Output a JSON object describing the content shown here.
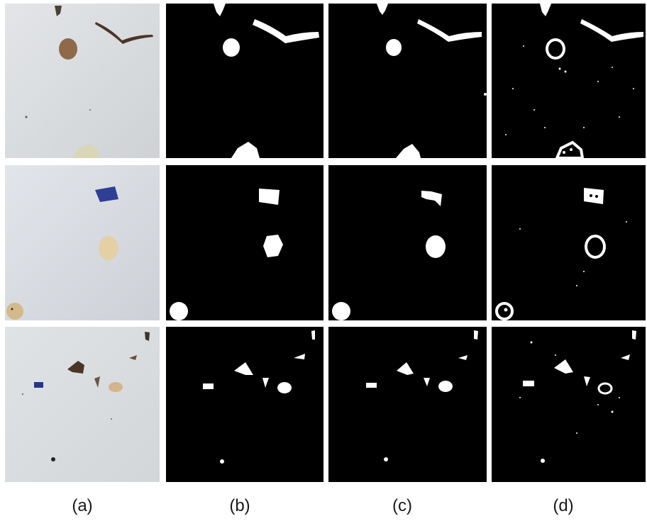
{
  "figure": {
    "column_labels": [
      "(a)",
      "(b)",
      "(c)",
      "(d)"
    ],
    "rows": 3,
    "columns": [
      {
        "content": "original-photograph",
        "background": "#d9dcdf"
      },
      {
        "content": "ground-truth-mask",
        "background": "#000000",
        "foreground": "#ffffff"
      },
      {
        "content": "segmentation-result",
        "background": "#000000",
        "foreground": "#ffffff"
      },
      {
        "content": "edge-detection-result",
        "background": "#000000",
        "foreground": "#ffffff"
      }
    ]
  }
}
